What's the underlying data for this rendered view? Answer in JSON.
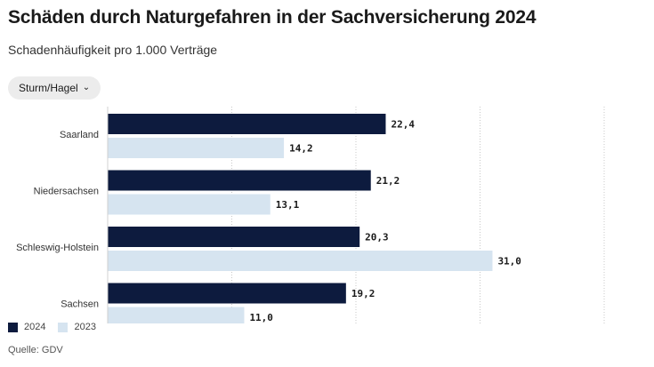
{
  "title": "Schäden durch Naturgefahren in der Sachversicherung 2024",
  "subtitle": "Schadenhäufigkeit pro 1.000 Verträge",
  "filter": {
    "label": "Sturm/Hagel",
    "icon": "chevron-down-icon"
  },
  "source": "Quelle: GDV",
  "colors": {
    "2024": "#0d1b3e",
    "2023": "#d6e4f0",
    "grid": "#c8c8c8"
  },
  "chart_data": {
    "type": "bar",
    "orientation": "horizontal",
    "categories": [
      "Saarland",
      "Niedersachsen",
      "Schleswig-Holstein",
      "Sachsen"
    ],
    "series": [
      {
        "name": "2024",
        "values": [
          22.4,
          21.2,
          20.3,
          19.2
        ],
        "labels": [
          "22,4",
          "21,2",
          "20,3",
          "19,2"
        ]
      },
      {
        "name": "2023",
        "values": [
          14.2,
          13.1,
          31.0,
          11.0
        ],
        "labels": [
          "14,2",
          "13,1",
          "31,0",
          "11,0"
        ]
      }
    ],
    "xlim": [
      0,
      40
    ],
    "grid": true,
    "legend": "bottom-left"
  }
}
